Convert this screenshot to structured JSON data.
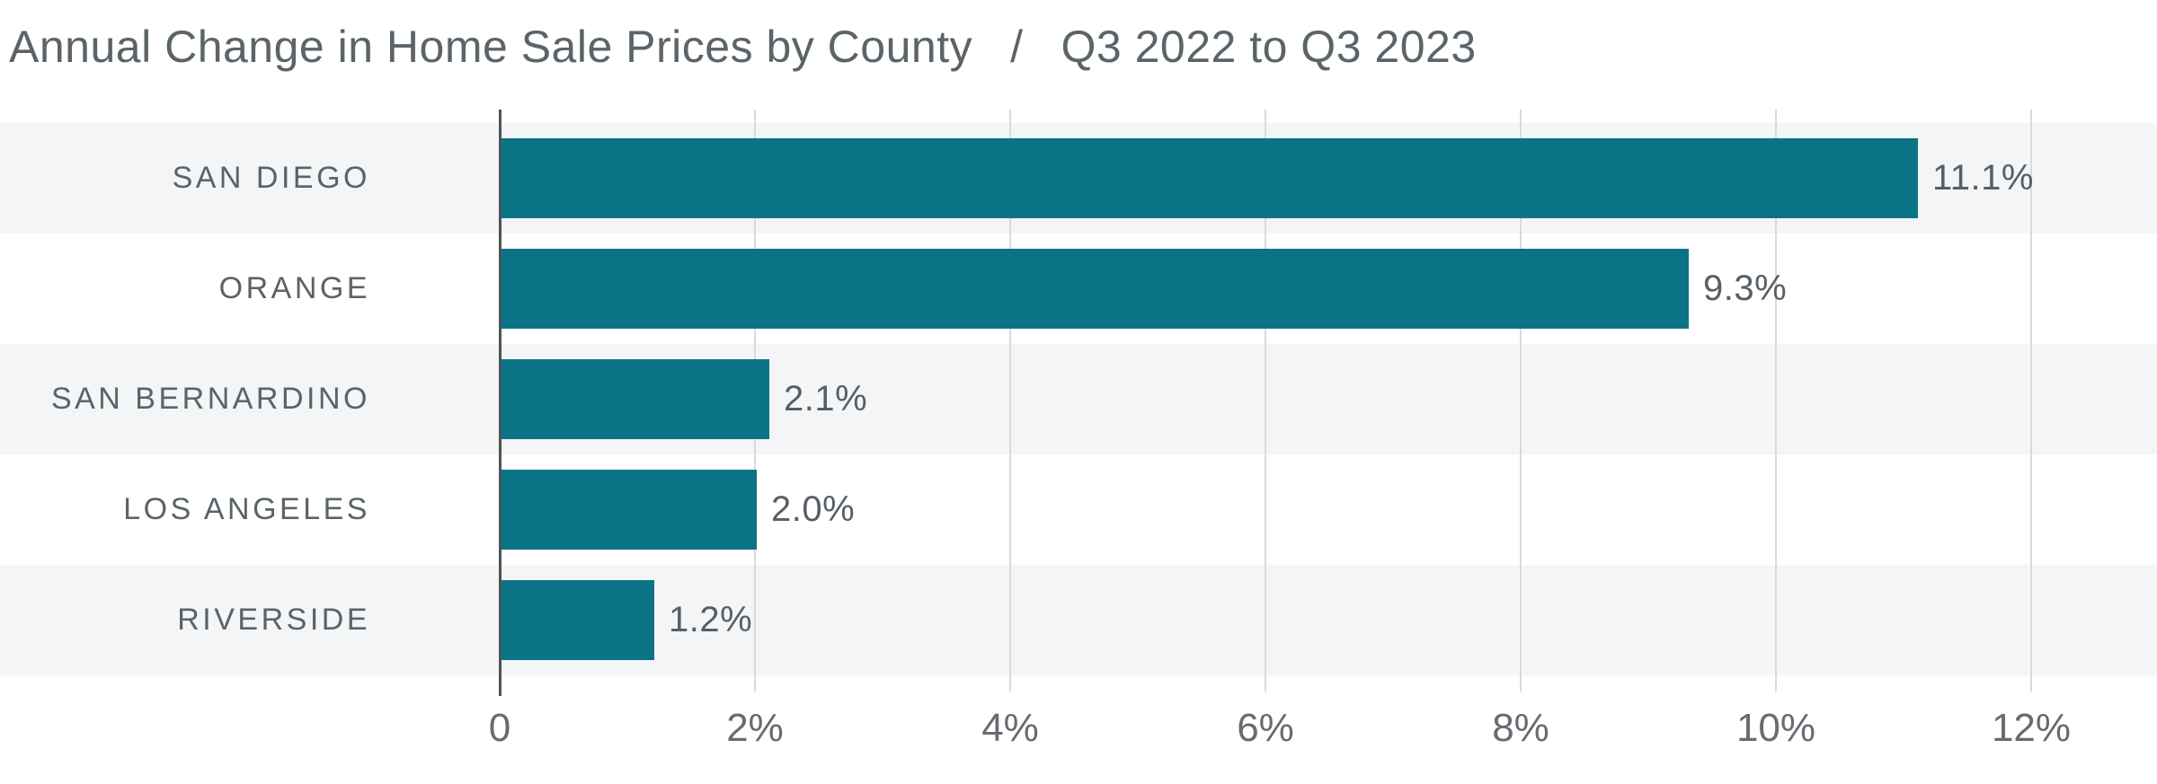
{
  "title": {
    "main": "Annual Change in Home Sale Prices by County",
    "separator": "/",
    "period": "Q3 2022 to Q3 2023"
  },
  "chart_data": {
    "type": "bar",
    "orientation": "horizontal",
    "title": "Annual Change in Home Sale Prices by County / Q3 2022 to Q3 2023",
    "categories": [
      "SAN DIEGO",
      "ORANGE",
      "SAN BERNARDINO",
      "LOS ANGELES",
      "RIVERSIDE"
    ],
    "values": [
      11.1,
      9.3,
      2.1,
      2.0,
      1.2
    ],
    "value_labels": [
      "11.1%",
      "9.3%",
      "2.1%",
      "2.0%",
      "1.2%"
    ],
    "xlabel": "",
    "ylabel": "",
    "xlim": [
      0,
      13
    ],
    "x_ticks": [
      {
        "value": 0,
        "label": "0"
      },
      {
        "value": 2,
        "label": "2%"
      },
      {
        "value": 4,
        "label": "4%"
      },
      {
        "value": 6,
        "label": "6%"
      },
      {
        "value": 8,
        "label": "8%"
      },
      {
        "value": 10,
        "label": "10%"
      },
      {
        "value": 12,
        "label": "12%"
      }
    ],
    "grid": "vertical-gridlines-on",
    "legend": "none",
    "row_striping": "alternating, stripes on rows 1/3/5",
    "colors": {
      "bar": "#0b7386",
      "row_stripe": "#f4f5f6",
      "axis_line": "#4e5357",
      "gridline": "#d9dbdb",
      "title_text": "#5b6468",
      "category_text": "#5a6368",
      "value_text": "#575f66",
      "tick_text": "#666c71",
      "background": "#ffffff"
    }
  }
}
